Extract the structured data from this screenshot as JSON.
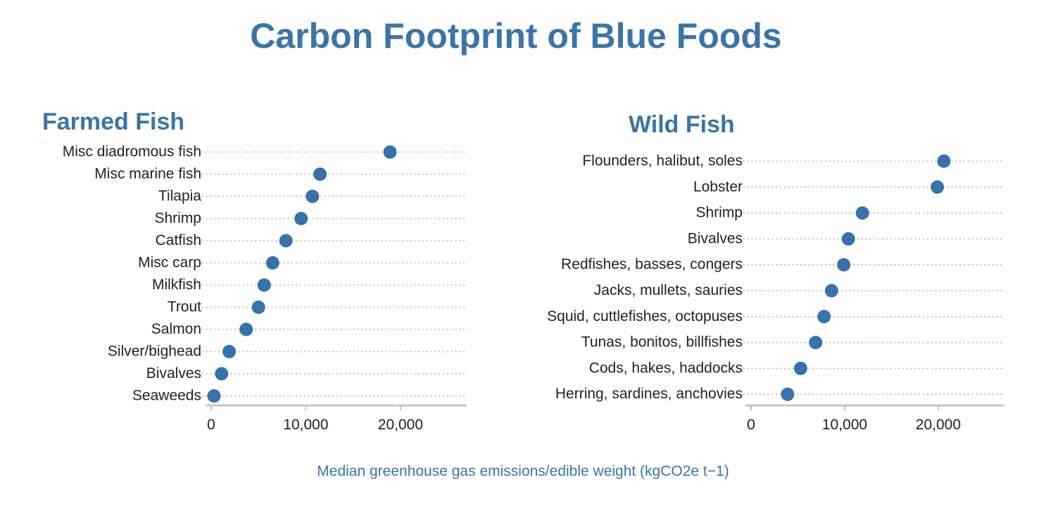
{
  "title": "Carbon Footprint of Blue Foods",
  "axis_label": "Median greenhouse gas emissions/edible weight (kgCO2e t−1)",
  "colors": {
    "dot": "#3672ab",
    "title": "#3b74a8",
    "grid": "#9aa3ad",
    "axis": "#bfbfbf"
  },
  "chart_data": [
    {
      "type": "scatter",
      "title": "Farmed Fish",
      "xlim": [
        0,
        27000
      ],
      "xticks": [
        0,
        10000,
        20000
      ],
      "xtick_labels": [
        "0",
        "10,000",
        "20,000"
      ],
      "categories": [
        "Misc diadromous fish",
        "Misc marine fish",
        "Tilapia",
        "Shrimp",
        "Catfish",
        "Misc carp",
        "Milkfish",
        "Trout",
        "Salmon",
        "Silver/bighead",
        "Bivalves",
        "Seaweeds"
      ],
      "values": [
        18900,
        11500,
        10700,
        9500,
        7900,
        6500,
        5600,
        5000,
        3700,
        1900,
        1100,
        300
      ]
    },
    {
      "type": "scatter",
      "title": "Wild Fish",
      "xlim": [
        0,
        27000
      ],
      "xticks": [
        0,
        10000,
        20000
      ],
      "xtick_labels": [
        "0",
        "10,000",
        "20,000"
      ],
      "categories": [
        "Flounders, halibut, soles",
        "Lobster",
        "Shrimp",
        "Bivalves",
        "Redfishes, basses, congers",
        "Jacks, mullets, sauries",
        "Squid, cuttlefishes, octopuses",
        "Tunas, bonitos, billfishes",
        "Cods, hakes, haddocks",
        "Herring, sardines, anchovies"
      ],
      "values": [
        20600,
        19900,
        11900,
        10400,
        9900,
        8600,
        7800,
        6900,
        5300,
        3900
      ]
    }
  ]
}
